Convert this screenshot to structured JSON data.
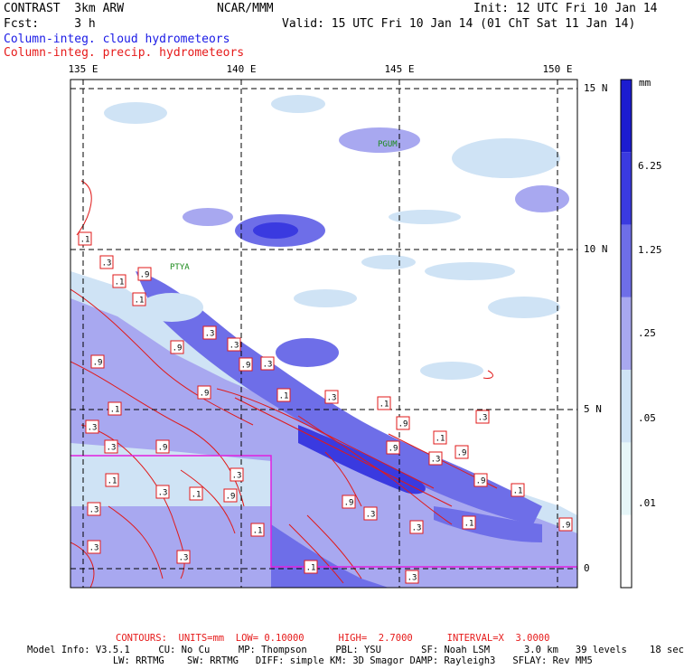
{
  "header": {
    "model": "CONTRAST  3km ARW",
    "org": "NCAR/MMM",
    "init": "Init: 12 UTC Fri 10 Jan 14",
    "fcst": "Fcst:     3 h",
    "valid": "Valid: 15 UTC Fri 10 Jan 14 (01 ChT Sat 11 Jan 14)",
    "field1": "Column-integ. cloud hydrometeors",
    "field2": "Column-integ. precip. hydrometeors"
  },
  "map": {
    "lon_labels": [
      "135 E",
      "140 E",
      "145 E",
      "150 E"
    ],
    "lat_labels": [
      "15 N",
      "10 N",
      "5 N",
      "0"
    ],
    "stations": [
      "PGUM",
      "PTYA"
    ],
    "contour_labels": [
      ".1",
      ".3",
      ".1",
      ".9",
      ".1",
      ".3",
      ".9",
      ".1",
      ".3",
      ".9",
      ".3",
      ".3",
      ".9",
      ".3",
      ".1",
      ".3",
      ".1",
      ".9",
      ".3",
      ".1",
      ".9",
      ".9",
      ".3",
      ".9",
      ".1",
      ".3",
      ".9",
      ".1",
      ".3",
      ".1",
      ".3",
      ".9",
      ".9",
      ".3",
      ".1",
      ".3",
      ".1",
      ".9",
      ".3",
      ".3",
      ".1",
      ".3",
      ".9"
    ]
  },
  "colorbar": {
    "units": "mm",
    "labels": [
      "6.25",
      "1.25",
      ".25",
      ".05",
      ".01"
    ],
    "colors": [
      "#1c1cd0",
      "#3a3ae0",
      "#6e6ee8",
      "#a8a8f0",
      "#cfe3f5",
      "#e6f6f8",
      "#ffffff"
    ]
  },
  "footer": {
    "contours": "CONTOURS:  UNITS=mm  LOW= 0.10000      HIGH=  2.7000      INTERVAL=X  3.0000",
    "model_info_1": "Model Info: V3.5.1     CU: No Cu     MP: Thompson     PBL: YSU       SF: Noah LSM      3.0 km   39 levels    18 sec",
    "model_info_2": "               LW: RRTMG    SW: RRTMG   DIFF: simple KM: 3D Smagor DAMP: Rayleigh3   SFLAY: Rev MM5"
  },
  "colors": {
    "contour": "#e01a1a",
    "box": "#e020e0",
    "grid": "#000000"
  }
}
